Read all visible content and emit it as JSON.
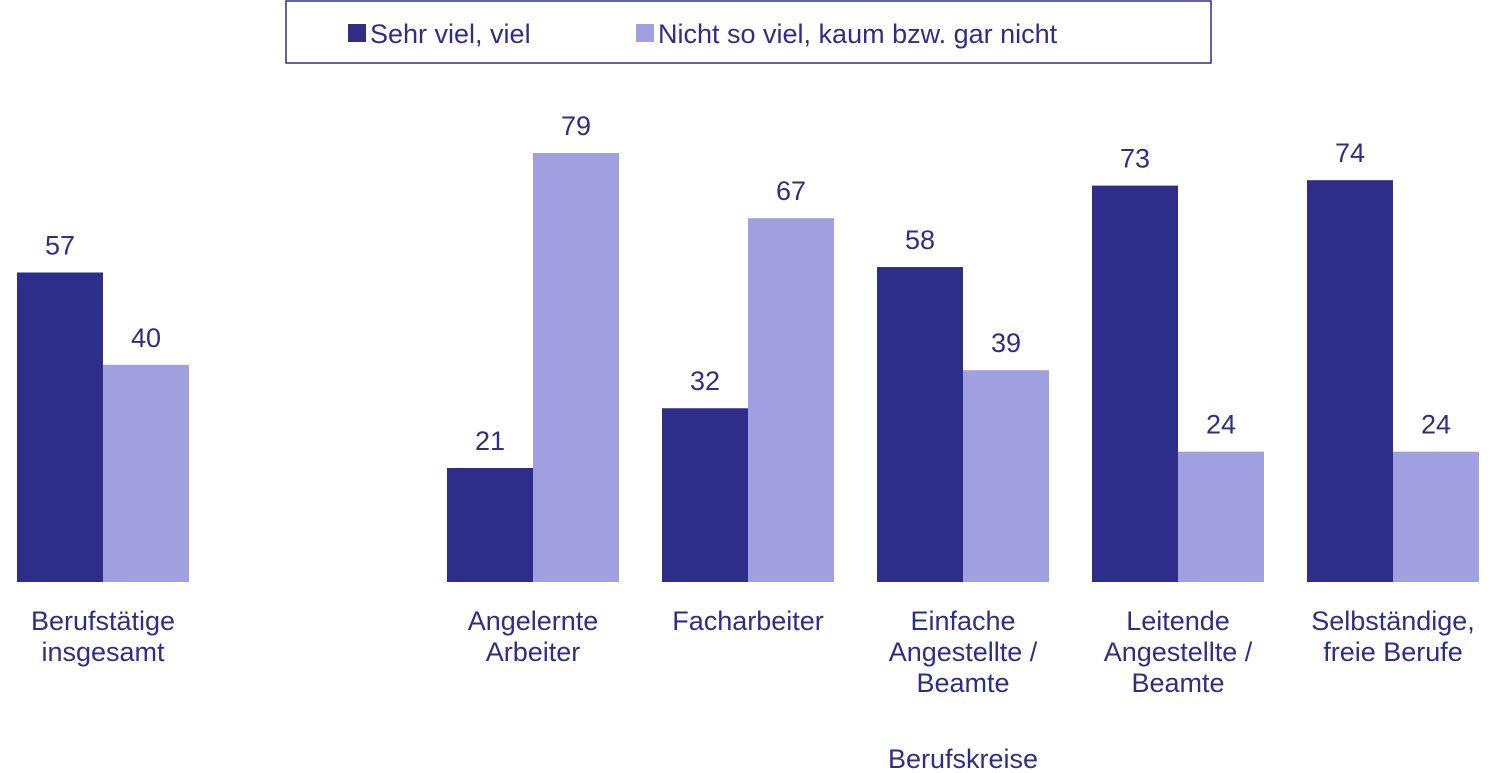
{
  "chart_data": {
    "type": "bar",
    "categories": [
      "Berufstätige\ninsgesamt",
      null,
      "Angelernte\nArbeiter",
      "Facharbeiter",
      "Einfache\nAngestellte /\nBeamte",
      "Leitende\nAngestellte /\nBeamte",
      "Selbständige,\nfreie Berufe"
    ],
    "series": [
      {
        "name": "Sehr viel, viel",
        "color": "#2e2e8a",
        "values": [
          57,
          null,
          21,
          32,
          58,
          73,
          74
        ]
      },
      {
        "name": "Nicht so viel, kaum bzw. gar nicht",
        "color": "#a09fdf",
        "values": [
          40,
          null,
          79,
          67,
          39,
          24,
          24
        ]
      }
    ],
    "xlabel": "Berufskreise",
    "ylim": [
      0,
      100
    ],
    "legend": "top"
  }
}
